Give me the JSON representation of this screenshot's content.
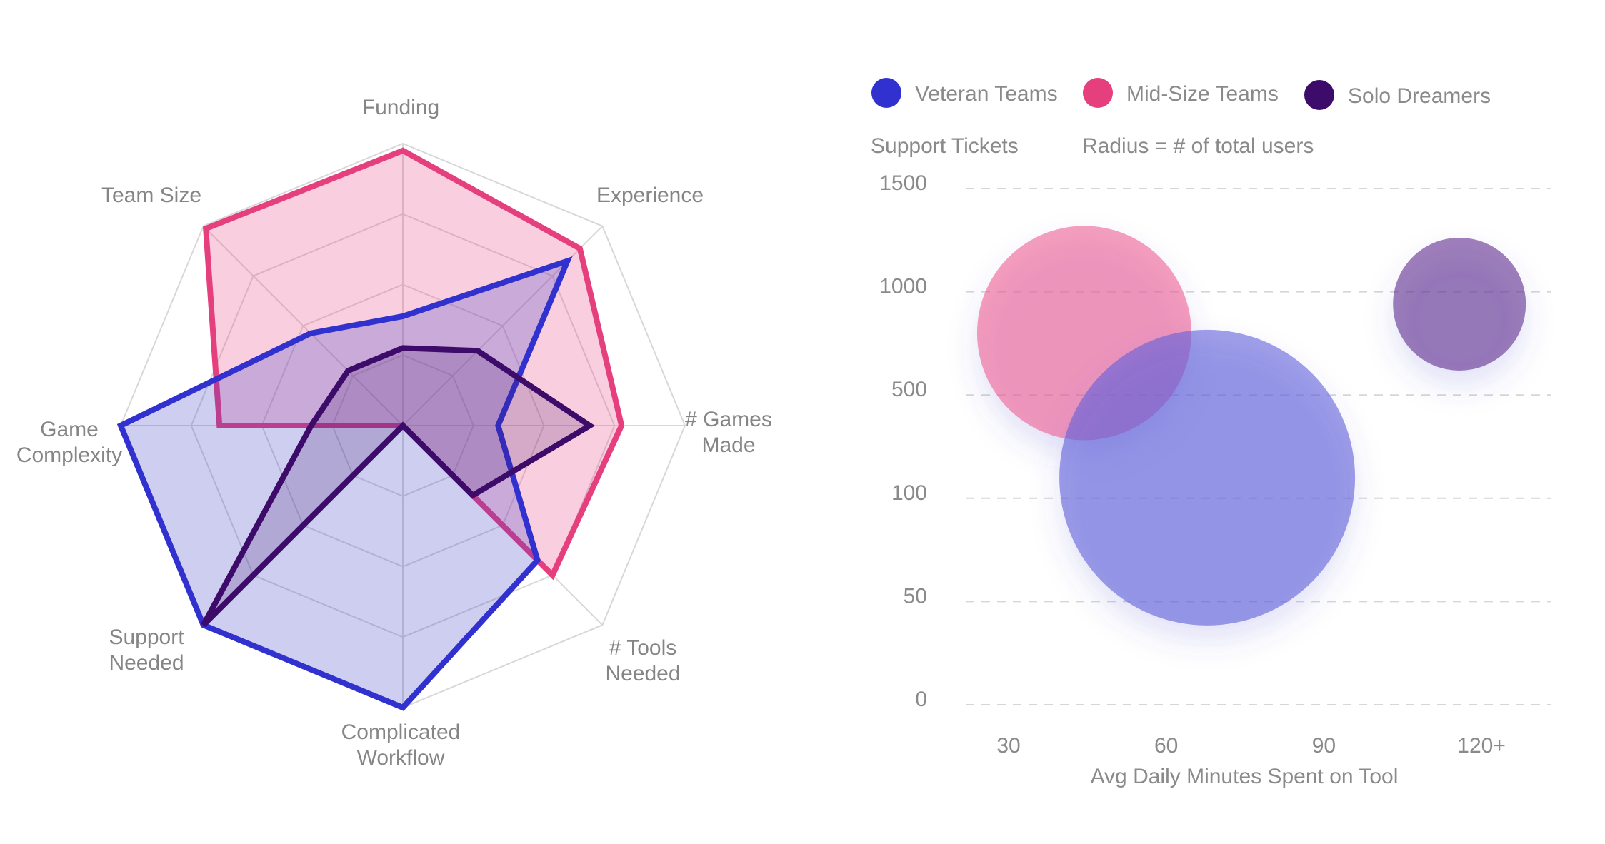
{
  "chart_data": [
    {
      "type": "radar",
      "axes": [
        "Funding",
        "Experience",
        "# Games\nMade",
        "# Tools\nNeeded",
        "Complicated\nWorkflow",
        "Support\nNeeded",
        "Game\nComplexity",
        "Team Size"
      ],
      "range": [
        0,
        4
      ],
      "rings": 4,
      "series": [
        {
          "name": "Mid-Size Teams",
          "color": "#e63f7e",
          "fill": "rgba(230, 63, 126, 0.25)",
          "values": [
            3.9,
            3.55,
            3.1,
            3.0,
            0.0,
            0.0,
            2.6,
            3.95
          ]
        },
        {
          "name": "Veteran Teams",
          "color": "#3131cf",
          "fill": "rgba(60, 60, 200, 0.25)",
          "values": [
            1.55,
            3.3,
            1.35,
            2.7,
            4.0,
            4.0,
            4.0,
            1.85
          ]
        },
        {
          "name": "Solo Dreamers",
          "color": "#3d0c6b",
          "fill": "rgba(70, 20, 110, 0.2)",
          "values": [
            1.1,
            1.5,
            2.65,
            1.4,
            0.0,
            4.0,
            1.3,
            1.1
          ]
        }
      ]
    },
    {
      "type": "bubble",
      "legend": [
        {
          "name": "Veteran Teams",
          "color": "#3131cf"
        },
        {
          "name": "Mid-Size Teams",
          "color": "#e63f7e"
        },
        {
          "name": "Solo Dreamers",
          "color": "#3d0c6b"
        }
      ],
      "ylabel": "Support Tickets",
      "note": "Radius = # of total users",
      "xlabel": "Avg Daily Minutes Spent on Tool",
      "x_ticks": [
        "30",
        "60",
        "90",
        "120+"
      ],
      "y_ticks": [
        "1500",
        "1000",
        "500",
        "100",
        "50",
        "0"
      ],
      "bubbles": [
        {
          "name": "Mid-Size Teams",
          "x_index": 0.48,
          "y_index": 3.6,
          "size": 150,
          "color": "rgba(236, 95, 145, 0.6)"
        },
        {
          "name": "Veteran Teams",
          "x_index": 1.26,
          "y_index": 2.2,
          "size": 207,
          "color": "rgba(95, 95, 218, 0.6)"
        },
        {
          "name": "Solo Dreamers",
          "x_index": 2.86,
          "y_index": 3.88,
          "size": 93,
          "color": "rgba(95, 45, 140, 0.6)"
        }
      ]
    }
  ]
}
